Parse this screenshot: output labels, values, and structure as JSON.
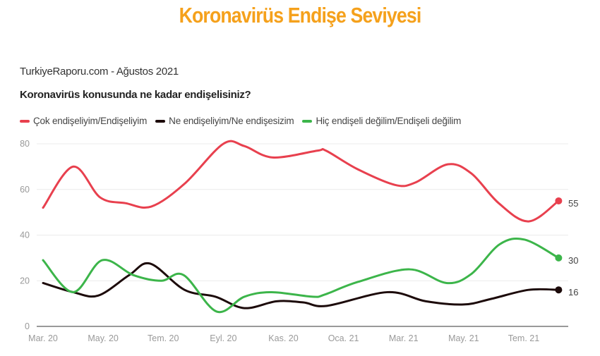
{
  "title": "Koronavirüs Endişe Seviyesi",
  "source": "TurkiyeRaporu.com - Ağustos 2021",
  "chart_data": {
    "type": "line",
    "title": "Koronavirüs konusunda ne kadar endişelisiniz?",
    "xlabel": "",
    "ylabel": "",
    "ylim": [
      0,
      80
    ],
    "yticks": [
      "0",
      "20",
      "40",
      "60",
      "80"
    ],
    "xticks": [
      {
        "date": "2020-03-01",
        "label": "Mar. 20"
      },
      {
        "date": "2020-05-01",
        "label": "May. 20"
      },
      {
        "date": "2020-07-01",
        "label": "Tem. 20"
      },
      {
        "date": "2020-09-01",
        "label": "Eyl. 20"
      },
      {
        "date": "2020-11-01",
        "label": "Kas. 20"
      },
      {
        "date": "2021-01-01",
        "label": "Oca. 21"
      },
      {
        "date": "2021-03-01",
        "label": "Mar. 21"
      },
      {
        "date": "2021-05-01",
        "label": "May. 21"
      },
      {
        "date": "2021-07-01",
        "label": "Tem. 21"
      }
    ],
    "grid": true,
    "legend_position": "top-left",
    "series": [
      {
        "name": "Çok endişeliyim/Endişeliyim",
        "color": "#E8404E",
        "end_label": "55",
        "points": [
          [
            "2020-03-01",
            52
          ],
          [
            "2020-04-01",
            70
          ],
          [
            "2020-04-28",
            56.5
          ],
          [
            "2020-05-24",
            54
          ],
          [
            "2020-06-19",
            52.5
          ],
          [
            "2020-07-23",
            62.5
          ],
          [
            "2020-09-01",
            80
          ],
          [
            "2020-09-22",
            79
          ],
          [
            "2020-10-21",
            74
          ],
          [
            "2020-12-05",
            77
          ],
          [
            "2020-12-14",
            77
          ],
          [
            "2021-01-15",
            69
          ],
          [
            "2021-02-21",
            62
          ],
          [
            "2021-03-13",
            63
          ],
          [
            "2021-04-15",
            71
          ],
          [
            "2021-05-09",
            67
          ],
          [
            "2021-06-06",
            54
          ],
          [
            "2021-07-06",
            46
          ],
          [
            "2021-08-06",
            55
          ]
        ]
      },
      {
        "name": "Ne endişeliyim/Ne endişesizim",
        "color": "#1C0A0A",
        "end_label": "16",
        "points": [
          [
            "2020-03-01",
            19
          ],
          [
            "2020-04-01",
            15
          ],
          [
            "2020-04-26",
            13.5
          ],
          [
            "2020-05-28",
            22.5
          ],
          [
            "2020-06-18",
            27.5
          ],
          [
            "2020-07-23",
            16
          ],
          [
            "2020-08-24",
            13
          ],
          [
            "2020-09-22",
            8
          ],
          [
            "2020-10-25",
            11
          ],
          [
            "2020-11-21",
            10.5
          ],
          [
            "2020-12-15",
            9
          ],
          [
            "2021-02-14",
            15
          ],
          [
            "2021-03-24",
            11
          ],
          [
            "2021-05-01",
            9.6
          ],
          [
            "2021-05-29",
            12
          ],
          [
            "2021-07-06",
            16
          ],
          [
            "2021-08-06",
            16
          ]
        ]
      },
      {
        "name": "Hiç endişeli değilim/Endişeli değilim",
        "color": "#3CB54A",
        "end_label": "30",
        "points": [
          [
            "2020-03-01",
            29
          ],
          [
            "2020-04-01",
            15
          ],
          [
            "2020-04-30",
            29
          ],
          [
            "2020-06-01",
            22.5
          ],
          [
            "2020-06-29",
            20
          ],
          [
            "2020-07-22",
            22.5
          ],
          [
            "2020-08-25",
            6.5
          ],
          [
            "2020-09-22",
            13
          ],
          [
            "2020-10-20",
            15
          ],
          [
            "2020-11-30",
            13
          ],
          [
            "2020-12-13",
            14
          ],
          [
            "2021-01-16",
            19.5
          ],
          [
            "2021-03-07",
            25
          ],
          [
            "2021-04-14",
            19
          ],
          [
            "2021-05-09",
            23
          ],
          [
            "2021-06-07",
            36
          ],
          [
            "2021-07-02",
            38
          ],
          [
            "2021-08-06",
            30
          ]
        ]
      }
    ]
  }
}
